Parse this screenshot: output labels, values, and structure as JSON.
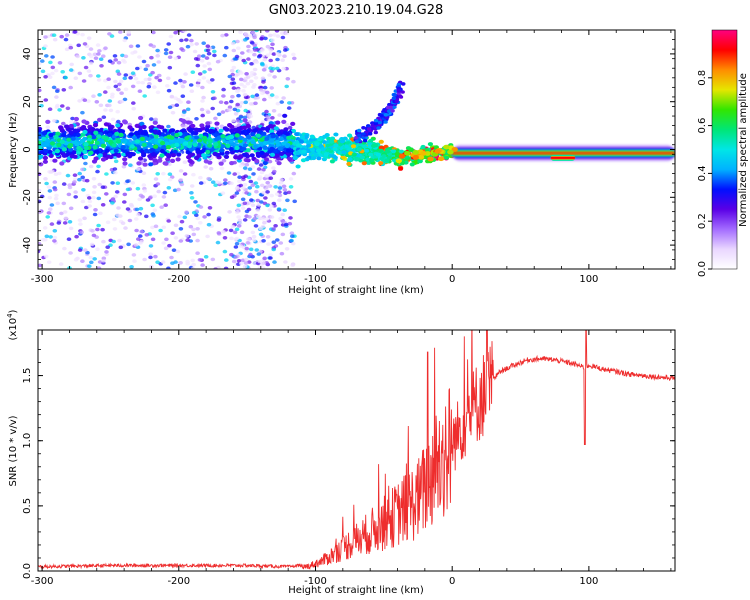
{
  "title": "GN03.2023.210.19.04.G28",
  "chart_data": [
    {
      "type": "heatmap",
      "name": "spectrogram",
      "xlabel": "Height of straight line (km)",
      "ylabel": "Frequency (Hz)",
      "xlim": [
        -303,
        163
      ],
      "ylim": [
        -50,
        50
      ],
      "xticks": [
        -300,
        -200,
        -100,
        0,
        100
      ],
      "yticks": [
        -40,
        -20,
        0,
        20,
        40
      ],
      "colorbar": {
        "label": "Normalized spectral amplitude",
        "range": [
          0,
          1
        ],
        "ticks": [
          "0.0",
          "0.2",
          "0.4",
          "0.6",
          "0.8"
        ],
        "tick_values": [
          0.0,
          0.2,
          0.4,
          0.6,
          0.8
        ],
        "colors": [
          "#ffffff",
          "#e9d6ff",
          "#a36bff",
          "#5a00e6",
          "#0010ff",
          "#00b2ff",
          "#00e6e6",
          "#00e676",
          "#32e600",
          "#e6e600",
          "#ff8c00",
          "#ff0000",
          "#ff0080"
        ]
      },
      "features": {
        "noise_band_x": [
          -303,
          -115
        ],
        "noise_band_center_hz": 3,
        "noise_band_halfwidth_hz": 7,
        "scatter_x": [
          -303,
          -115
        ],
        "scatter_density": "high",
        "dense_columns_x": [
          -160,
          -130
        ],
        "rising_branch": [
          [
            -70,
            5
          ],
          [
            -55,
            10
          ],
          [
            -45,
            17
          ],
          [
            -38,
            26
          ]
        ],
        "transition_x": [
          -115,
          0
        ],
        "transition_center_hz": [
          1,
          0,
          -3,
          -1
        ],
        "steady_line_x": [
          0,
          163
        ],
        "steady_line_hz": -1.5,
        "steady_line_dip": {
          "x": [
            72,
            90
          ],
          "hz": -3.5
        }
      }
    },
    {
      "type": "line",
      "name": "snr",
      "xlabel": "Height of straight line (km)",
      "ylabel": "SNR (10 * v/v)",
      "multiplier": "(x10",
      "multiplier_exp": "4",
      "multiplier_close": ")",
      "xlim": [
        -303,
        163
      ],
      "ylim": [
        0,
        1.85
      ],
      "xticks": [
        -300,
        -200,
        -100,
        0,
        100
      ],
      "xtick_labels": [
        "-300",
        "-200",
        "-100",
        "0",
        "100"
      ],
      "yticks": [
        0.0,
        0.5,
        1.0,
        1.5
      ],
      "ytick_labels": [
        "0.0",
        "0.5",
        "1.0",
        "1.5"
      ],
      "color": "#ee2d2d",
      "series": [
        {
          "name": "SNR",
          "x": [
            -303,
            -250,
            -200,
            -150,
            -120,
            -105,
            -95,
            -85,
            -75,
            -65,
            -55,
            -45,
            -35,
            -25,
            -18,
            -12,
            -5,
            0,
            5,
            12,
            20,
            28,
            35,
            45,
            55,
            65,
            75,
            85,
            92,
            97,
            100,
            110,
            120,
            130,
            140,
            150,
            163
          ],
          "y": [
            0.02,
            0.03,
            0.03,
            0.03,
            0.02,
            0.04,
            0.08,
            0.15,
            0.22,
            0.28,
            0.35,
            0.42,
            0.5,
            0.58,
            0.7,
            0.85,
            0.95,
            1.0,
            1.1,
            1.22,
            1.35,
            1.45,
            1.53,
            1.58,
            1.62,
            1.63,
            1.62,
            1.6,
            1.58,
            1.56,
            1.58,
            1.55,
            1.53,
            1.51,
            1.5,
            1.49,
            1.48
          ]
        }
      ],
      "notable": [
        {
          "x": -18,
          "y": 1.68,
          "kind": "spike"
        },
        {
          "x": 97,
          "y": 0.97,
          "kind": "dip"
        },
        {
          "x": 98,
          "y": 1.85,
          "kind": "spike"
        }
      ]
    }
  ]
}
